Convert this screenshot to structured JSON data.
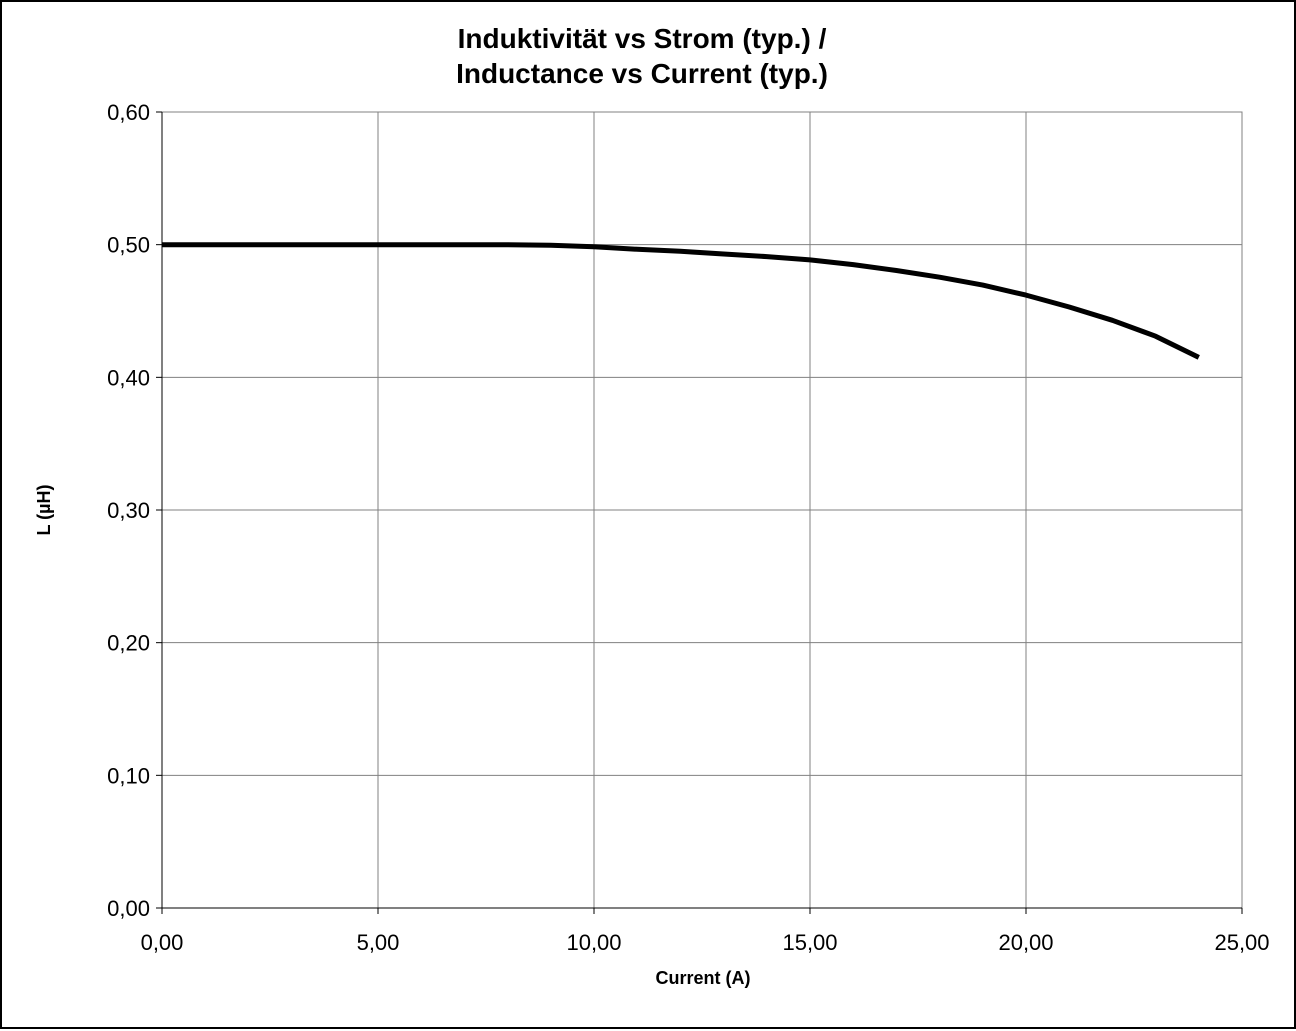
{
  "chart_data": {
    "type": "line",
    "title_lines": [
      "Induktivität vs Strom (typ.) /",
      "Inductance vs Current (typ.)"
    ],
    "xlabel": "Current (A)",
    "ylabel": "L (µH)",
    "xlim": [
      0,
      25
    ],
    "ylim": [
      0,
      0.6
    ],
    "grid": true,
    "legend": "none",
    "x_ticks": [
      0,
      5,
      10,
      15,
      20,
      25
    ],
    "x_tick_labels": [
      "0,00",
      "5,00",
      "10,00",
      "15,00",
      "20,00",
      "25,00"
    ],
    "y_ticks": [
      0,
      0.1,
      0.2,
      0.3,
      0.4,
      0.5,
      0.6
    ],
    "y_tick_labels": [
      "0,00",
      "0,10",
      "0,20",
      "0,30",
      "0,40",
      "0,50",
      "0,60"
    ],
    "series": [
      {
        "color": "#000000",
        "x": [
          0,
          1,
          2,
          3,
          4,
          5,
          6,
          7,
          8,
          9,
          10,
          11,
          12,
          13,
          14,
          15,
          16,
          17,
          18,
          19,
          20,
          21,
          22,
          23,
          24
        ],
        "y": [
          0.5,
          0.5,
          0.5,
          0.5,
          0.5,
          0.5,
          0.5,
          0.5,
          0.5,
          0.4995,
          0.4985,
          0.4965,
          0.495,
          0.493,
          0.491,
          0.4885,
          0.485,
          0.4805,
          0.4755,
          0.4695,
          0.462,
          0.453,
          0.443,
          0.431,
          0.415
        ]
      }
    ]
  }
}
